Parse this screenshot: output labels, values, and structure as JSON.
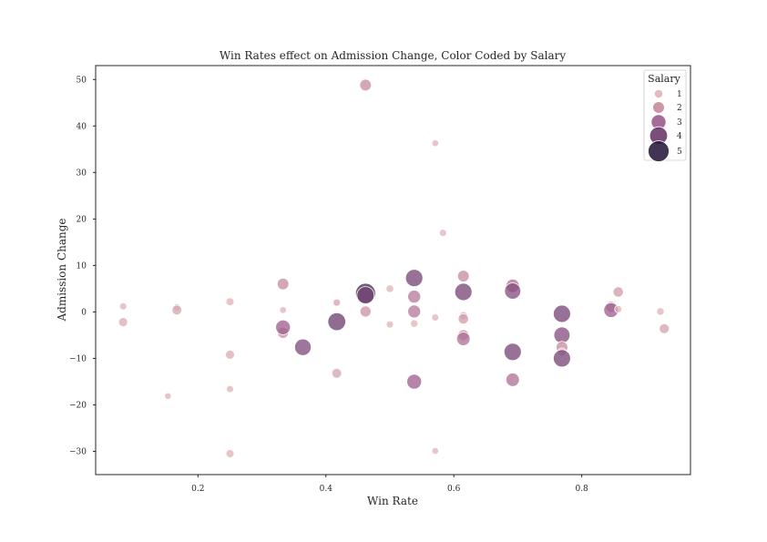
{
  "chart_data": {
    "type": "scatter",
    "title": "Win Rates effect on Admission Change, Color Coded by Salary",
    "xlabel": "Win Rate",
    "ylabel": "Admission Change",
    "xlim": [
      0.04,
      0.97
    ],
    "ylim": [
      -35,
      53
    ],
    "xticks": [
      0.2,
      0.4,
      0.6,
      0.8
    ],
    "xtick_labels": [
      "0.2",
      "0.4",
      "0.6",
      "0.8"
    ],
    "yticks": [
      -30,
      -20,
      -10,
      0,
      10,
      20,
      30,
      40,
      50
    ],
    "ytick_labels": [
      "−30",
      "−20",
      "−10",
      "0",
      "10",
      "20",
      "30",
      "40",
      "50"
    ],
    "grid": false,
    "legend": {
      "title": "Salary",
      "placement": "top-right",
      "entries": [
        {
          "label": "1",
          "value": 1
        },
        {
          "label": "2",
          "value": 2
        },
        {
          "label": "3",
          "value": 3
        },
        {
          "label": "4",
          "value": 4
        },
        {
          "label": "5",
          "value": 5
        }
      ]
    },
    "colors": {
      "1": "#dfb3b8",
      "2": "#c68a9f",
      "3": "#9c5c8c",
      "4": "#6b3a6e",
      "5": "#2d1e40",
      "axes": "#262626"
    },
    "size_scale": {
      "min_salary": 0.3,
      "max_salary": 5.0,
      "min_radius": 3.5,
      "max_radius": 11.5
    },
    "points": [
      {
        "x": 0.083,
        "y": 1.2,
        "salary": 0.6
      },
      {
        "x": 0.083,
        "y": -2.2,
        "salary": 1.2
      },
      {
        "x": 0.153,
        "y": -18.1,
        "salary": 0.4
      },
      {
        "x": 0.167,
        "y": 1.0,
        "salary": 0.6
      },
      {
        "x": 0.167,
        "y": 0.4,
        "salary": 1.4
      },
      {
        "x": 0.25,
        "y": 2.2,
        "salary": 0.8
      },
      {
        "x": 0.25,
        "y": -9.2,
        "salary": 1.2
      },
      {
        "x": 0.25,
        "y": -16.6,
        "salary": 0.6
      },
      {
        "x": 0.25,
        "y": -30.5,
        "salary": 0.9
      },
      {
        "x": 0.333,
        "y": 6.0,
        "salary": 2.0
      },
      {
        "x": 0.333,
        "y": 0.4,
        "salary": 0.5
      },
      {
        "x": 0.333,
        "y": -4.5,
        "salary": 1.8
      },
      {
        "x": 0.333,
        "y": -3.3,
        "salary": 3.0
      },
      {
        "x": 0.364,
        "y": -7.6,
        "salary": 3.6
      },
      {
        "x": 0.417,
        "y": 2.0,
        "salary": 1.0
      },
      {
        "x": 0.417,
        "y": 2.0,
        "salary": 0.6
      },
      {
        "x": 0.417,
        "y": -2.1,
        "salary": 4.0
      },
      {
        "x": 0.417,
        "y": -13.2,
        "salary": 1.4
      },
      {
        "x": 0.462,
        "y": 48.8,
        "salary": 2.0
      },
      {
        "x": 0.462,
        "y": 4.0,
        "salary": 4.7
      },
      {
        "x": 0.462,
        "y": 3.6,
        "salary": 3.8
      },
      {
        "x": 0.462,
        "y": 0.1,
        "salary": 1.8
      },
      {
        "x": 0.5,
        "y": 5.0,
        "salary": 0.7
      },
      {
        "x": 0.5,
        "y": -2.7,
        "salary": 0.6
      },
      {
        "x": 0.538,
        "y": 7.3,
        "salary": 3.8
      },
      {
        "x": 0.538,
        "y": 3.3,
        "salary": 2.4
      },
      {
        "x": 0.538,
        "y": 0.1,
        "salary": 2.4
      },
      {
        "x": 0.538,
        "y": -2.5,
        "salary": 0.7
      },
      {
        "x": 0.538,
        "y": -15.0,
        "salary": 3.0
      },
      {
        "x": 0.571,
        "y": 36.3,
        "salary": 0.5
      },
      {
        "x": 0.571,
        "y": -1.2,
        "salary": 0.6
      },
      {
        "x": 0.571,
        "y": -29.9,
        "salary": 0.5
      },
      {
        "x": 0.583,
        "y": 17.0,
        "salary": 0.6
      },
      {
        "x": 0.615,
        "y": 7.7,
        "salary": 2.0
      },
      {
        "x": 0.615,
        "y": 4.3,
        "salary": 3.8
      },
      {
        "x": 0.615,
        "y": -0.8,
        "salary": 0.8
      },
      {
        "x": 0.615,
        "y": -1.5,
        "salary": 1.6
      },
      {
        "x": 0.615,
        "y": -5.0,
        "salary": 1.8
      },
      {
        "x": 0.615,
        "y": -5.8,
        "salary": 2.6
      },
      {
        "x": 0.692,
        "y": 5.6,
        "salary": 2.6
      },
      {
        "x": 0.692,
        "y": 4.5,
        "salary": 3.5
      },
      {
        "x": 0.692,
        "y": -8.6,
        "salary": 3.8
      },
      {
        "x": 0.692,
        "y": -14.6,
        "salary": 2.6
      },
      {
        "x": 0.769,
        "y": -0.4,
        "salary": 3.8
      },
      {
        "x": 0.769,
        "y": -5.0,
        "salary": 3.5
      },
      {
        "x": 0.769,
        "y": -7.6,
        "salary": 2.0
      },
      {
        "x": 0.769,
        "y": -8.6,
        "salary": 0.8
      },
      {
        "x": 0.769,
        "y": -10.0,
        "salary": 3.8
      },
      {
        "x": 0.846,
        "y": 1.1,
        "salary": 1.8
      },
      {
        "x": 0.846,
        "y": 0.4,
        "salary": 3.0
      },
      {
        "x": 0.857,
        "y": 4.3,
        "salary": 1.6
      },
      {
        "x": 0.857,
        "y": 0.6,
        "salary": 0.6
      },
      {
        "x": 0.923,
        "y": 0.1,
        "salary": 0.7
      },
      {
        "x": 0.929,
        "y": -3.6,
        "salary": 1.5
      }
    ]
  }
}
